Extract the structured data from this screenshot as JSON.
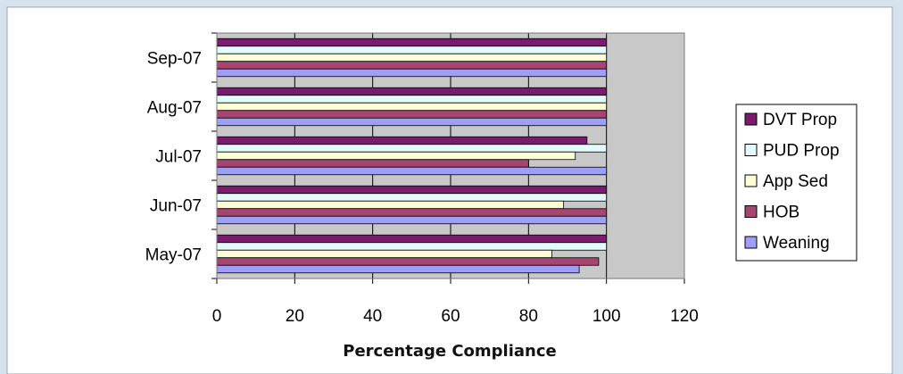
{
  "chart_data": {
    "type": "bar",
    "orientation": "horizontal",
    "categories": [
      "May-07",
      "Jun-07",
      "Jul-07",
      "Aug-07",
      "Sep-07"
    ],
    "series": [
      {
        "name": "DVT Prop",
        "color": "#7a1c6e",
        "values": [
          100,
          100,
          95,
          100,
          100
        ]
      },
      {
        "name": "PUD Prop",
        "color": "#e4fbfb",
        "values": [
          100,
          100,
          100,
          100,
          100
        ]
      },
      {
        "name": "App Sed",
        "color": "#fdfdd6",
        "values": [
          86,
          89,
          92,
          100,
          100
        ]
      },
      {
        "name": "HOB",
        "color": "#a64472",
        "values": [
          98,
          100,
          80,
          100,
          100
        ]
      },
      {
        "name": "Weaning",
        "color": "#9f9ef5",
        "values": [
          93,
          100,
          100,
          100,
          100
        ]
      }
    ],
    "xticks": [
      "0",
      "20",
      "40",
      "60",
      "80",
      "100",
      "120"
    ],
    "xlim": [
      0,
      120
    ],
    "xlabel": "Percentage Compliance",
    "grid": true,
    "legend": "right",
    "plot_background": "#c8c8c8",
    "background": "#ffffff"
  }
}
